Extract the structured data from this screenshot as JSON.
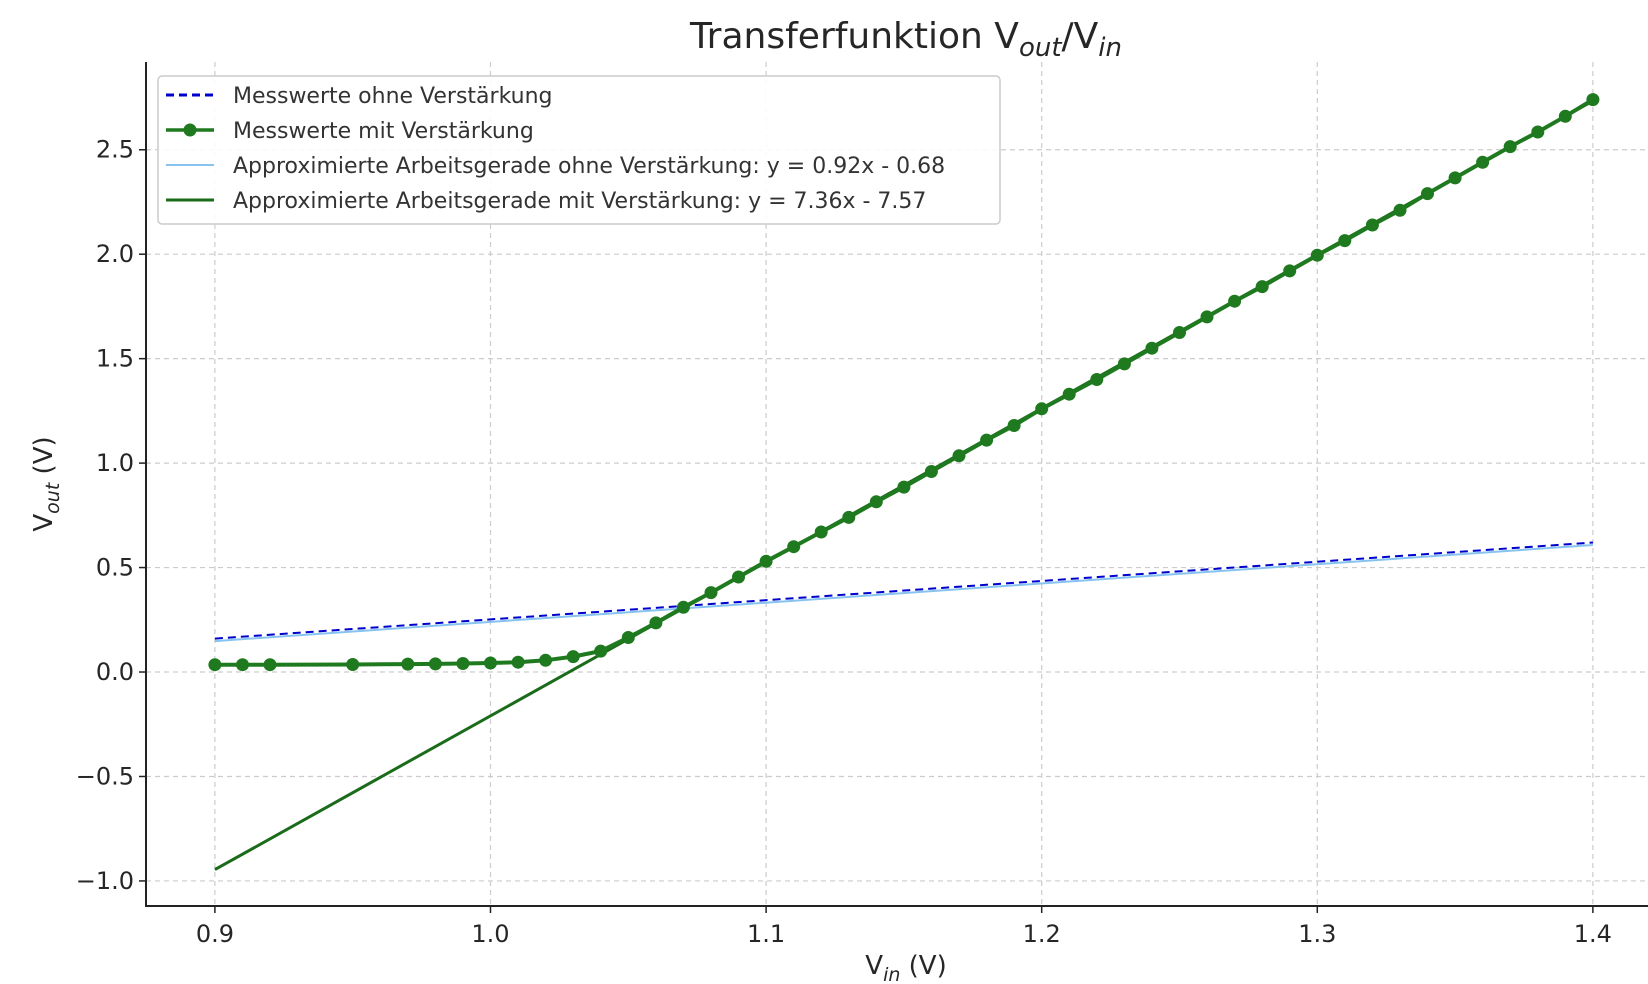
{
  "chart_data": {
    "type": "line",
    "title": {
      "main": "Transferfunktion V",
      "sub1": "out",
      "mid": "/V",
      "sub2": "in"
    },
    "xlabel": {
      "main": "V",
      "sub": "in",
      "suffix": " (V)"
    },
    "ylabel": {
      "main": "V",
      "sub": "out",
      "suffix": " (V)"
    },
    "xlim": [
      0.875,
      1.42
    ],
    "ylim": [
      -1.12,
      2.92
    ],
    "xticks": [
      {
        "value": 0.9,
        "label": "0.9"
      },
      {
        "value": 1.0,
        "label": "1.0"
      },
      {
        "value": 1.1,
        "label": "1.1"
      },
      {
        "value": 1.2,
        "label": "1.2"
      },
      {
        "value": 1.3,
        "label": "1.3"
      },
      {
        "value": 1.4,
        "label": "1.4"
      }
    ],
    "yticks": [
      {
        "value": -1.0,
        "label": "−1.0"
      },
      {
        "value": -0.5,
        "label": "−0.5"
      },
      {
        "value": 0.0,
        "label": "0.0"
      },
      {
        "value": 0.5,
        "label": "0.5"
      },
      {
        "value": 1.0,
        "label": "1.0"
      },
      {
        "value": 1.5,
        "label": "1.5"
      },
      {
        "value": 2.0,
        "label": "2.0"
      },
      {
        "value": 2.5,
        "label": "2.5"
      }
    ],
    "grid": true,
    "legend_position": "top-left",
    "series": [
      {
        "name": "Messwerte ohne Verstärkung",
        "color": "#0000cc",
        "style": "dashed",
        "x": [
          0.9,
          1.4
        ],
        "y": [
          0.16,
          0.62
        ]
      },
      {
        "name": "Messwerte mit Verstärkung",
        "color": "#1f7a1f",
        "style": "solid-markers",
        "x": [
          0.9,
          0.91,
          0.92,
          0.95,
          0.97,
          0.98,
          0.99,
          1.0,
          1.01,
          1.02,
          1.03,
          1.04,
          1.05,
          1.06,
          1.07,
          1.08,
          1.09,
          1.1,
          1.11,
          1.12,
          1.13,
          1.14,
          1.15,
          1.16,
          1.17,
          1.18,
          1.19,
          1.2,
          1.21,
          1.22,
          1.23,
          1.24,
          1.25,
          1.26,
          1.27,
          1.28,
          1.29,
          1.3,
          1.31,
          1.32,
          1.33,
          1.34,
          1.35,
          1.36,
          1.37,
          1.38,
          1.39,
          1.4
        ],
        "y": [
          0.035,
          0.035,
          0.035,
          0.036,
          0.038,
          0.039,
          0.041,
          0.043,
          0.047,
          0.056,
          0.074,
          0.1,
          0.165,
          0.235,
          0.31,
          0.38,
          0.455,
          0.53,
          0.6,
          0.67,
          0.74,
          0.815,
          0.885,
          0.96,
          1.035,
          1.11,
          1.18,
          1.26,
          1.33,
          1.4,
          1.475,
          1.55,
          1.625,
          1.7,
          1.775,
          1.845,
          1.92,
          1.995,
          2.065,
          2.14,
          2.21,
          2.29,
          2.365,
          2.44,
          2.515,
          2.585,
          2.66,
          2.74
        ]
      },
      {
        "name": "Approximierte Arbeitsgerade ohne Verstärkung: y = 0.92x - 0.68",
        "color": "#87c3f0",
        "style": "solid",
        "x": [
          0.9,
          1.4
        ],
        "y": [
          0.148,
          0.608
        ]
      },
      {
        "name": "Approximierte Arbeitsgerade mit Verstärkung: y = 7.36x - 7.57",
        "color": "#1a6b1a",
        "style": "solid",
        "x": [
          0.9,
          1.4
        ],
        "y": [
          -0.946,
          2.734
        ]
      }
    ]
  }
}
